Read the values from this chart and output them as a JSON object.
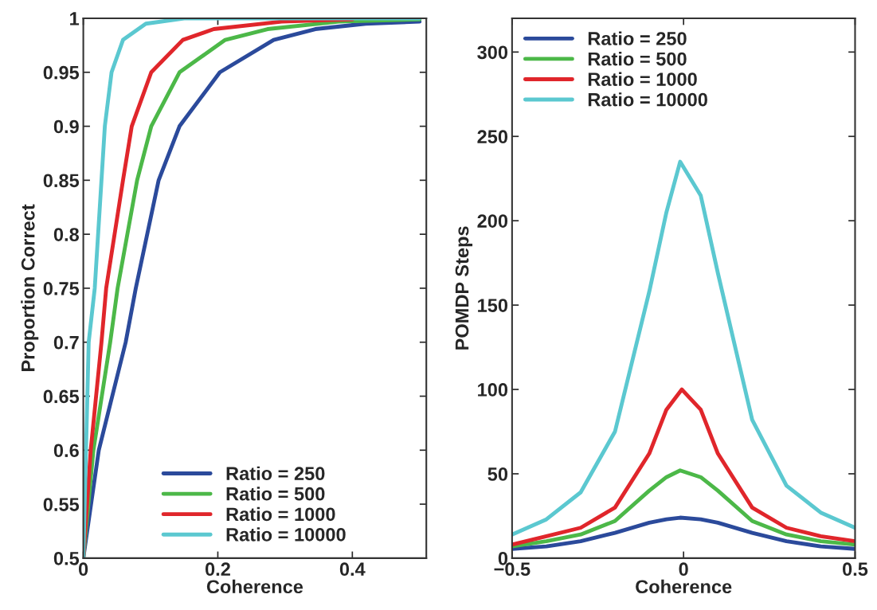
{
  "chart_data": [
    {
      "type": "line",
      "xlabel": "Coherence",
      "ylabel": "Proportion Correct",
      "xlim": [
        0,
        0.51
      ],
      "ylim": [
        0.5,
        1
      ],
      "xticks": [
        0,
        0.2,
        0.4
      ],
      "yticks": [
        0.5,
        0.55,
        0.6,
        0.65,
        0.7,
        0.75,
        0.8,
        0.85,
        0.9,
        0.95,
        1
      ],
      "grid": false,
      "legend": "bottom",
      "series": [
        {
          "name": "Ratio = 250",
          "color": "#2b4a9b",
          "x": [
            0,
            0.023,
            0.063,
            0.078,
            0.112,
            0.143,
            0.203,
            0.283,
            0.345,
            0.42,
            0.5
          ],
          "values": [
            0.5,
            0.6,
            0.7,
            0.75,
            0.85,
            0.9,
            0.95,
            0.98,
            0.99,
            0.995,
            0.997
          ]
        },
        {
          "name": "Ratio = 500",
          "color": "#4cb848",
          "x": [
            0,
            0.015,
            0.04,
            0.051,
            0.08,
            0.101,
            0.143,
            0.211,
            0.274,
            0.38,
            0.5
          ],
          "values": [
            0.5,
            0.6,
            0.7,
            0.75,
            0.85,
            0.9,
            0.95,
            0.98,
            0.99,
            0.997,
            0.999
          ]
        },
        {
          "name": "Ratio = 1000",
          "color": "#e0262b",
          "x": [
            0,
            0.011,
            0.027,
            0.034,
            0.059,
            0.072,
            0.101,
            0.148,
            0.194,
            0.295,
            0.4
          ],
          "values": [
            0.5,
            0.6,
            0.7,
            0.75,
            0.85,
            0.9,
            0.95,
            0.98,
            0.99,
            0.997,
            0.999
          ]
        },
        {
          "name": "Ratio = 10000",
          "color": "#5bc8d0",
          "x": [
            0,
            0.004,
            0.008,
            0.017,
            0.032,
            0.042,
            0.059,
            0.093,
            0.15,
            0.5
          ],
          "values": [
            0.5,
            0.6,
            0.7,
            0.75,
            0.9,
            0.95,
            0.98,
            0.995,
            1,
            1
          ]
        }
      ]
    },
    {
      "type": "line",
      "xlabel": "Coherence",
      "ylabel": "POMDP Steps",
      "xlim": [
        -0.5,
        0.5
      ],
      "ylim": [
        0,
        320
      ],
      "xticks": [
        {
          "value": -0.5,
          "label": "−0.5"
        },
        0,
        0.5
      ],
      "yticks": [
        0,
        50,
        100,
        150,
        200,
        250,
        300
      ],
      "grid": false,
      "legend": "top left",
      "series": [
        {
          "name": "Ratio = 250",
          "color": "#2b4a9b",
          "x": [
            -0.5,
            -0.4,
            -0.3,
            -0.2,
            -0.1,
            -0.05,
            -0.01,
            0.05,
            0.1,
            0.2,
            0.3,
            0.4,
            0.5
          ],
          "values": [
            5.5,
            7,
            10,
            15,
            21,
            23,
            24,
            23,
            21,
            15,
            10,
            7,
            5.5
          ]
        },
        {
          "name": "Ratio = 500",
          "color": "#4cb848",
          "x": [
            -0.5,
            -0.4,
            -0.3,
            -0.2,
            -0.1,
            -0.05,
            -0.01,
            0.05,
            0.1,
            0.2,
            0.3,
            0.4,
            0.5
          ],
          "values": [
            7,
            10,
            14,
            22,
            40,
            48,
            52,
            48,
            40,
            22,
            14,
            10,
            8
          ]
        },
        {
          "name": "Ratio = 1000",
          "color": "#e0262b",
          "x": [
            -0.5,
            -0.4,
            -0.3,
            -0.2,
            -0.1,
            -0.05,
            -0.005,
            0.05,
            0.1,
            0.2,
            0.3,
            0.4,
            0.5
          ],
          "values": [
            8,
            13,
            18,
            30,
            62,
            88,
            100,
            88,
            62,
            30,
            18,
            13,
            10
          ]
        },
        {
          "name": "Ratio = 10000",
          "color": "#5bc8d0",
          "x": [
            -0.5,
            -0.4,
            -0.3,
            -0.2,
            -0.1,
            -0.05,
            -0.01,
            0.05,
            0.1,
            0.2,
            0.3,
            0.4,
            0.5
          ],
          "values": [
            14,
            23,
            39,
            75,
            158,
            205,
            235,
            215,
            169,
            82,
            43,
            27,
            18
          ]
        }
      ]
    }
  ]
}
